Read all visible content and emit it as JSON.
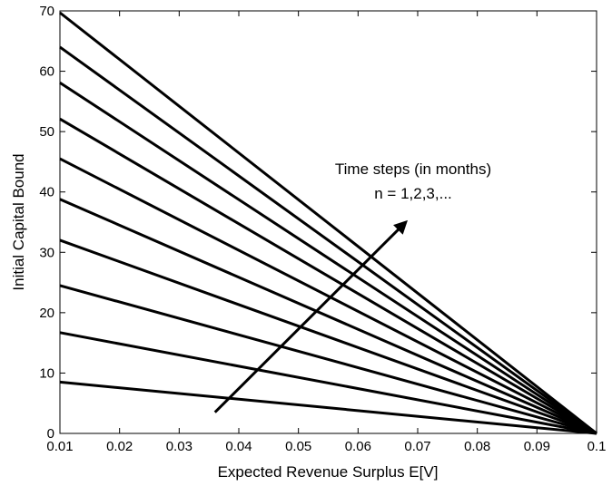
{
  "chart_data": {
    "type": "line",
    "title": "",
    "xlabel": "Expected Revenue Surplus E[V]",
    "ylabel": "Initial Capital Bound",
    "xlim": [
      0.01,
      0.1
    ],
    "ylim": [
      0,
      70
    ],
    "xticks": [
      "0.01",
      "0.02",
      "0.03",
      "0.04",
      "0.05",
      "0.06",
      "0.07",
      "0.08",
      "0.09",
      "0.1"
    ],
    "yticks": [
      "0",
      "10",
      "20",
      "30",
      "40",
      "50",
      "60",
      "70"
    ],
    "grid": false,
    "line_color": "#000000",
    "series": [
      {
        "x": [
          0.01,
          0.1
        ],
        "y": [
          8.5,
          0
        ]
      },
      {
        "x": [
          0.01,
          0.1
        ],
        "y": [
          16.7,
          0
        ]
      },
      {
        "x": [
          0.01,
          0.1
        ],
        "y": [
          24.5,
          0
        ]
      },
      {
        "x": [
          0.01,
          0.1
        ],
        "y": [
          32.0,
          0
        ]
      },
      {
        "x": [
          0.01,
          0.1
        ],
        "y": [
          38.8,
          0
        ]
      },
      {
        "x": [
          0.01,
          0.1
        ],
        "y": [
          45.5,
          0
        ]
      },
      {
        "x": [
          0.01,
          0.1
        ],
        "y": [
          52.1,
          0
        ]
      },
      {
        "x": [
          0.01,
          0.1
        ],
        "y": [
          58.1,
          0
        ]
      },
      {
        "x": [
          0.01,
          0.1
        ],
        "y": [
          64.0,
          0
        ]
      },
      {
        "x": [
          0.01,
          0.1
        ],
        "y": [
          69.7,
          0
        ]
      }
    ],
    "annotation": {
      "line1": "Time steps (in months)",
      "line2": "n = 1,2,3,...",
      "arrow_from": [
        0.036,
        3.5
      ],
      "arrow_to": [
        0.068,
        35
      ]
    }
  }
}
